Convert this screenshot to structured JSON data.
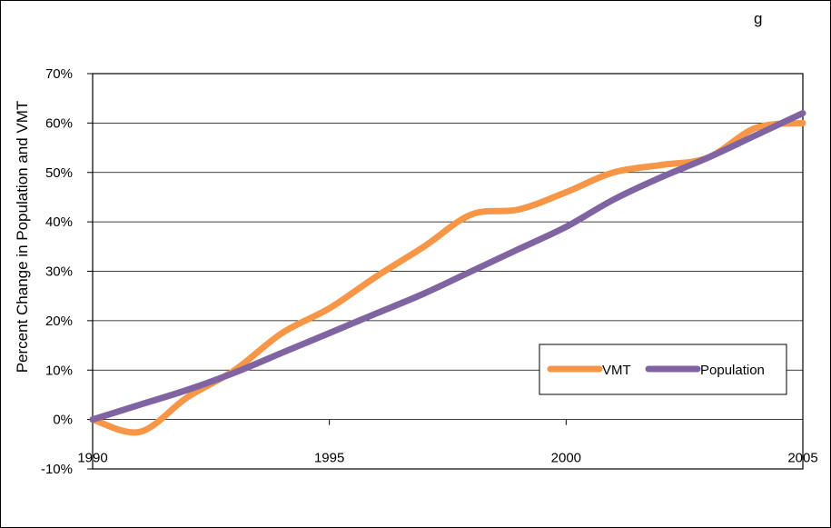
{
  "chart_data": {
    "type": "line",
    "title": "",
    "title_fragment": "g",
    "xlabel": "",
    "ylabel": "Percent Change in Population and VMT",
    "xlim": [
      1990,
      2005
    ],
    "ylim": [
      -0.1,
      0.7
    ],
    "x_ticks": [
      {
        "value": 1990,
        "label": "1990"
      },
      {
        "value": 1995,
        "label": "1995"
      },
      {
        "value": 2000,
        "label": "2000"
      },
      {
        "value": 2005,
        "label": "2005"
      }
    ],
    "y_ticks": [
      {
        "value": -0.1,
        "label": "-10%"
      },
      {
        "value": 0.0,
        "label": "0%"
      },
      {
        "value": 0.1,
        "label": "10%"
      },
      {
        "value": 0.2,
        "label": "20%"
      },
      {
        "value": 0.3,
        "label": "30%"
      },
      {
        "value": 0.4,
        "label": "40%"
      },
      {
        "value": 0.5,
        "label": "50%"
      },
      {
        "value": 0.6,
        "label": "60%"
      },
      {
        "value": 0.7,
        "label": "70%"
      }
    ],
    "grid": "horizontal",
    "legend_position": "bottom-right",
    "x": [
      1990,
      1991,
      1992,
      1993,
      1994,
      1995,
      1996,
      1997,
      1998,
      1999,
      2000,
      2001,
      2002,
      2003,
      2004,
      2005
    ],
    "series": [
      {
        "name": "VMT",
        "color": "#f79646",
        "values": [
          0.0,
          -0.025,
          0.045,
          0.1,
          0.175,
          0.225,
          0.29,
          0.35,
          0.415,
          0.425,
          0.46,
          0.5,
          0.515,
          0.53,
          0.59,
          0.6
        ]
      },
      {
        "name": "Population",
        "color": "#8064a2",
        "values": [
          0.0,
          0.03,
          0.06,
          0.095,
          0.135,
          0.175,
          0.215,
          0.255,
          0.3,
          0.345,
          0.39,
          0.445,
          0.49,
          0.53,
          0.575,
          0.62
        ]
      }
    ]
  }
}
